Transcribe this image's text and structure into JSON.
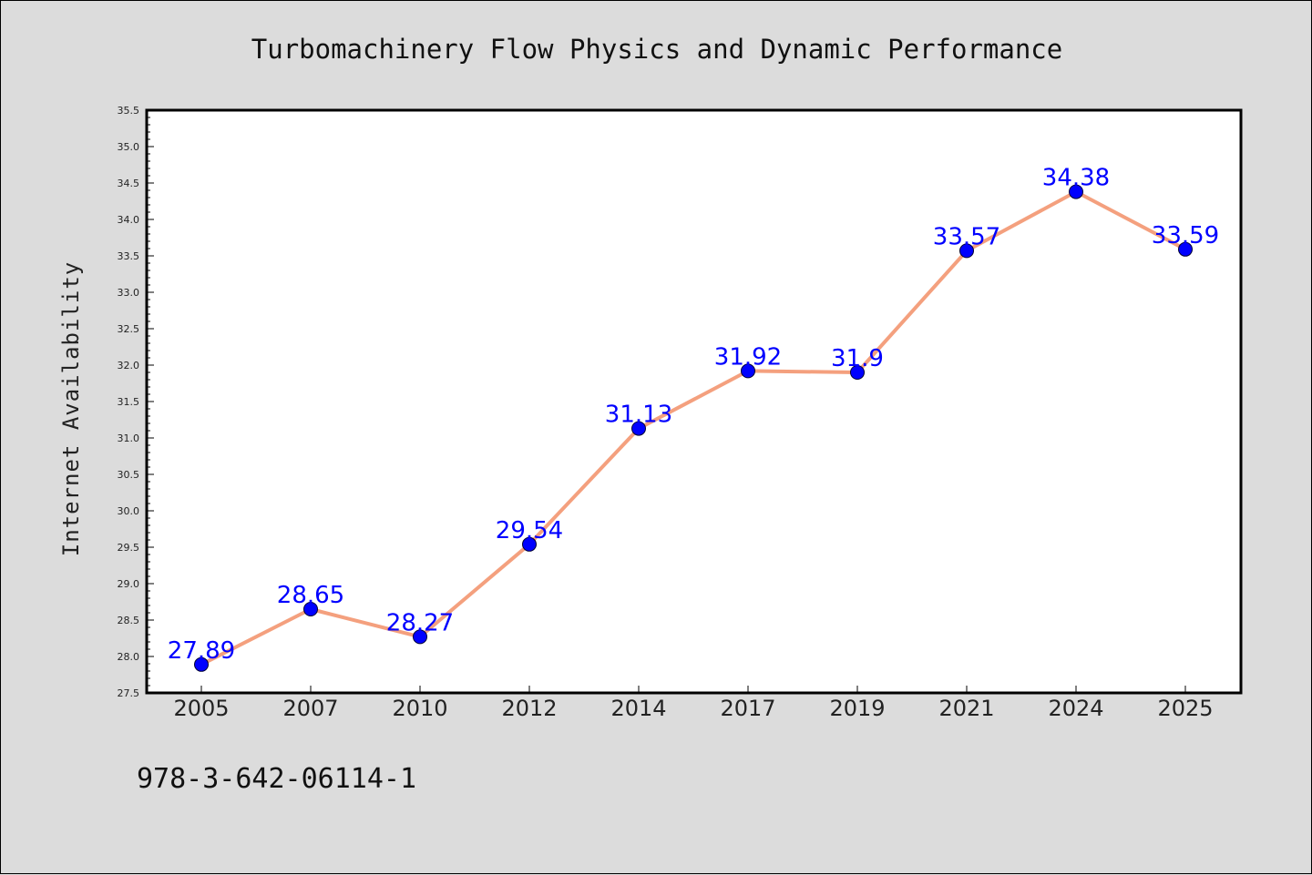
{
  "chart_data": {
    "type": "line",
    "title": "Turbomachinery Flow Physics and Dynamic Performance",
    "xlabel": "",
    "ylabel": "Internet Availability",
    "categories": [
      "2005",
      "2007",
      "2010",
      "2012",
      "2014",
      "2017",
      "2019",
      "2021",
      "2024",
      "2025"
    ],
    "series": [
      {
        "values": [
          27.89,
          28.65,
          28.27,
          29.54,
          31.13,
          31.92,
          31.9,
          33.57,
          34.38,
          33.59
        ],
        "data_labels": [
          "27.89",
          "28.65",
          "28.27",
          "29.54",
          "31.13",
          "31.92",
          "31.9",
          "33.57",
          "34.38",
          "33.59"
        ],
        "line_color": "#f4a07e",
        "marker_color": "#0000ff"
      }
    ],
    "ylim": [
      27.5,
      35.5
    ],
    "yticks": [
      "27.5",
      "28.0",
      "28.5",
      "29.0",
      "29.5",
      "30.0",
      "30.5",
      "31.0",
      "31.5",
      "32.0",
      "32.5",
      "33.0",
      "33.5",
      "34.0",
      "34.5",
      "35.0",
      "35.5"
    ],
    "grid": false,
    "legend": "none",
    "background": "#dcdcdc",
    "plot_background": "#ffffff"
  },
  "footer": {
    "isbn": "978-3-642-06114-1"
  }
}
